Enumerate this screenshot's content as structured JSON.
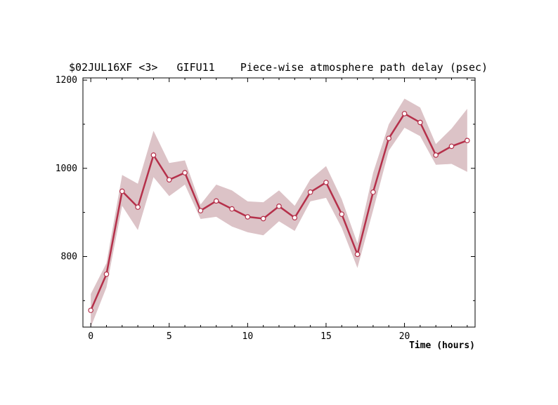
{
  "chart_data": {
    "type": "line",
    "title": "$02JUL16XF <3>   GIFU11    Piece-wise atmosphere path delay (psec)",
    "xlabel": "Time (hours)",
    "ylabel": "",
    "xlim": [
      -0.5,
      24.5
    ],
    "ylim": [
      640,
      1205
    ],
    "x_ticks": [
      0,
      5,
      10,
      15,
      20
    ],
    "y_ticks": [
      800,
      1000,
      1200
    ],
    "grid": false,
    "legend": "none",
    "colors": {
      "line": "#b5304a",
      "marker_fill": "#ffffff",
      "band": "#dcc3c7"
    },
    "series": [
      {
        "x": [
          0,
          1,
          2,
          3,
          4,
          5,
          6,
          7,
          8,
          9,
          10,
          11,
          12,
          13,
          14,
          15,
          16,
          17,
          18,
          19,
          20,
          21,
          22,
          23,
          24
        ],
        "values": [
          678,
          760,
          948,
          912,
          1030,
          974,
          990,
          904,
          926,
          908,
          890,
          886,
          914,
          888,
          946,
          968,
          896,
          805,
          946,
          1068,
          1124,
          1104,
          1030,
          1050,
          1063
        ],
        "upper": [
          715,
          785,
          985,
          965,
          1085,
          1012,
          1018,
          918,
          963,
          950,
          925,
          923,
          950,
          915,
          975,
          1005,
          930,
          830,
          990,
          1100,
          1158,
          1138,
          1055,
          1090,
          1135
        ],
        "lower": [
          640,
          730,
          915,
          860,
          980,
          937,
          963,
          885,
          890,
          868,
          855,
          848,
          880,
          858,
          925,
          933,
          865,
          774,
          905,
          1040,
          1092,
          1073,
          1008,
          1010,
          992
        ]
      }
    ]
  }
}
